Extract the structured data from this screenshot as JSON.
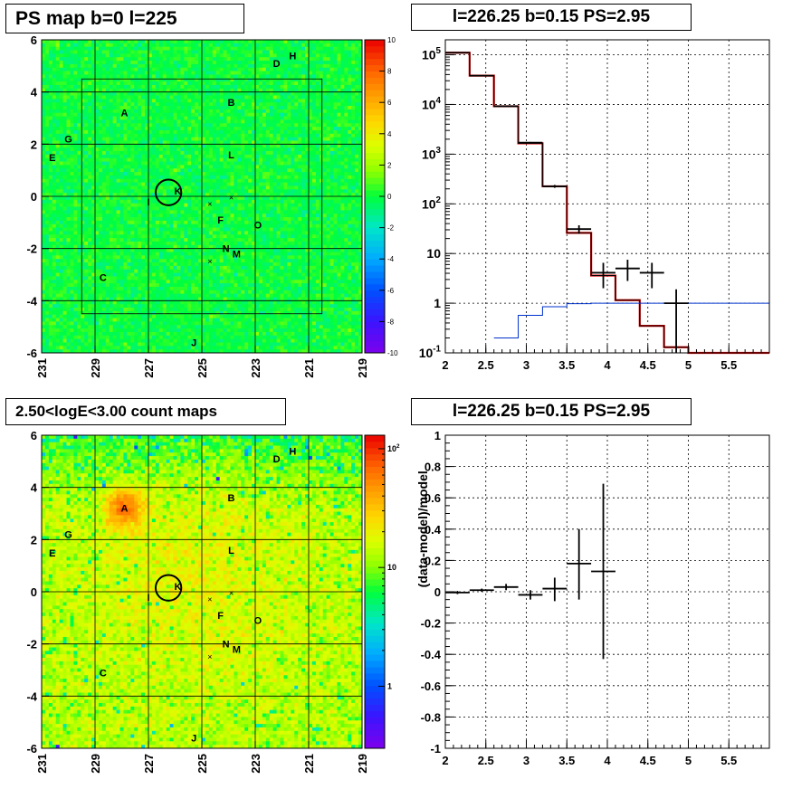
{
  "titles": {
    "ps_map": "PS map b=0 l=225",
    "spectrum": "l=226.25 b=0.15 PS=2.95",
    "count_map": "2.50<logE<3.00 count maps",
    "residual": "l=226.25 b=0.15 PS=2.95"
  },
  "colors": {
    "data": "#000000",
    "model_red": "#dd0000",
    "model_blue": "#0033cc",
    "grid": "#000000"
  },
  "chart_data": [
    {
      "type": "heatmap",
      "title": "PS map b=0 l=225",
      "xlabel": "",
      "ylabel": "",
      "xlim": [
        231,
        219
      ],
      "ylim": [
        -6,
        6
      ],
      "x_ticks": [
        "231",
        "229",
        "227",
        "225",
        "223",
        "221",
        "219"
      ],
      "y_ticks": [
        "6",
        "4",
        "2",
        "0",
        "-2",
        "-4",
        "-6"
      ],
      "colorbar": {
        "range": [
          -10,
          10
        ],
        "scale": "linear",
        "ticks": [
          "10",
          "8",
          "6",
          "4",
          "2",
          "0",
          "-2",
          "-4",
          "-6",
          "-8",
          "-10"
        ]
      },
      "mean_level": 0,
      "sources": [
        {
          "label": "H",
          "l": 221.6,
          "b": 5.4
        },
        {
          "label": "D",
          "l": 222.2,
          "b": 5.1
        },
        {
          "label": "A",
          "l": 227.9,
          "b": 3.2
        },
        {
          "label": "B",
          "l": 223.9,
          "b": 3.6
        },
        {
          "label": "G",
          "l": 230.0,
          "b": 2.2
        },
        {
          "label": "E",
          "l": 230.6,
          "b": 1.5
        },
        {
          "label": "L",
          "l": 223.9,
          "b": 1.6
        },
        {
          "label": "K",
          "l": 225.9,
          "b": 0.2
        },
        {
          "label": "I",
          "l": 227.0,
          "b": -0.2
        },
        {
          "label": "F",
          "l": 224.3,
          "b": -0.9
        },
        {
          "label": "O",
          "l": 222.9,
          "b": -1.1
        },
        {
          "label": "N",
          "l": 224.1,
          "b": -2.0
        },
        {
          "label": "M",
          "l": 223.7,
          "b": -2.2
        },
        {
          "label": "C",
          "l": 228.7,
          "b": -3.1
        },
        {
          "label": "J",
          "l": 225.3,
          "b": -5.6
        }
      ],
      "crosses": [
        [
          224.7,
          -0.3
        ],
        [
          223.9,
          -0.05
        ],
        [
          224.7,
          -2.5
        ]
      ],
      "circle": {
        "l": 226.25,
        "b": 0.15,
        "r": 0.48
      },
      "roi": {
        "l": [
          229.5,
          220.5
        ],
        "b": [
          -4.5,
          4.5
        ]
      }
    },
    {
      "type": "line",
      "title": "l=226.25 b=0.15 PS=2.95",
      "xlabel": "",
      "ylabel": "",
      "xlim": [
        2,
        6
      ],
      "ylim": [
        0.1,
        200000
      ],
      "yscale": "log",
      "x_ticks": [
        "2",
        "2.5",
        "3",
        "3.5",
        "4",
        "4.5",
        "5",
        "5.5"
      ],
      "y_ticks": [
        {
          "base": "10",
          "exp": "5"
        },
        {
          "base": "10",
          "exp": "4"
        },
        {
          "base": "10",
          "exp": "3"
        },
        {
          "base": "10",
          "exp": "2"
        },
        {
          "base": "10",
          "exp": ""
        },
        {
          "base": "1",
          "exp": ""
        },
        {
          "base": "10",
          "exp": "-1"
        }
      ],
      "grid": true,
      "series": [
        {
          "style": "step",
          "color": "#dd0000",
          "edges": [
            2,
            2.3,
            2.6,
            2.9,
            3.2,
            3.5,
            3.8,
            4.1,
            4.4,
            4.7,
            5.0,
            6.0
          ],
          "values": [
            110000,
            38000,
            9200,
            1650,
            225,
            26,
            3.6,
            1.15,
            0.35,
            0.13,
            0.1
          ]
        },
        {
          "style": "step",
          "color": "#000000",
          "width": 1,
          "edges": [
            2,
            2.3,
            2.6,
            2.9,
            3.2,
            3.5,
            3.8,
            4.1,
            4.4,
            4.7,
            5.0,
            6.0
          ],
          "values": [
            110000,
            38000,
            9200,
            1650,
            225,
            26,
            3.6,
            1.15,
            0.35,
            0.13,
            0.1
          ]
        },
        {
          "style": "step",
          "color": "#0033cc",
          "edges": [
            2.6,
            2.9,
            3.2,
            3.5,
            3.8,
            6.0
          ],
          "values": [
            0.2,
            0.57,
            0.85,
            0.98,
            1.0
          ]
        },
        {
          "style": "errorbars",
          "color": "#000000",
          "points": [
            {
              "x": 2.15,
              "xlo": 2.0,
              "xhi": 2.3,
              "y": 110000,
              "ylo": 109000,
              "yhi": 111000
            },
            {
              "x": 2.45,
              "xlo": 2.3,
              "xhi": 2.6,
              "y": 38000,
              "ylo": 37600,
              "yhi": 38400
            },
            {
              "x": 2.75,
              "xlo": 2.6,
              "xhi": 2.9,
              "y": 9200,
              "ylo": 9000,
              "yhi": 9400
            },
            {
              "x": 3.05,
              "xlo": 2.9,
              "xhi": 3.2,
              "y": 1700,
              "ylo": 1640,
              "yhi": 1760
            },
            {
              "x": 3.35,
              "xlo": 3.2,
              "xhi": 3.5,
              "y": 225,
              "ylo": 210,
              "yhi": 240
            },
            {
              "x": 3.65,
              "xlo": 3.5,
              "xhi": 3.8,
              "y": 31,
              "ylo": 25,
              "yhi": 37
            },
            {
              "x": 3.95,
              "xlo": 3.8,
              "xhi": 4.1,
              "y": 4.1,
              "ylo": 2.0,
              "yhi": 6.5
            },
            {
              "x": 4.25,
              "xlo": 4.1,
              "xhi": 4.4,
              "y": 5.0,
              "ylo": 2.8,
              "yhi": 7.5
            },
            {
              "x": 4.55,
              "xlo": 4.4,
              "xhi": 4.7,
              "y": 4.1,
              "ylo": 2.0,
              "yhi": 6.5
            },
            {
              "x": 4.85,
              "xlo": 4.7,
              "xhi": 5.0,
              "y": 1.0,
              "ylo": 0.1,
              "yhi": 1.9
            }
          ]
        }
      ]
    },
    {
      "type": "heatmap",
      "title": "2.50<logE<3.00 count maps",
      "xlabel": "",
      "ylabel": "",
      "xlim": [
        231,
        219
      ],
      "ylim": [
        -6,
        6
      ],
      "x_ticks": [
        "231",
        "229",
        "227",
        "225",
        "223",
        "221",
        "219"
      ],
      "y_ticks": [
        "6",
        "4",
        "2",
        "0",
        "-2",
        "-4",
        "-6"
      ],
      "colorbar": {
        "range": [
          0.3,
          130
        ],
        "scale": "log",
        "ticks": [
          {
            "base": "10",
            "exp": "2"
          },
          {
            "base": "10",
            "exp": ""
          },
          {
            "base": "1",
            "exp": ""
          }
        ]
      },
      "sources": "same as PS map",
      "bright_spots": [
        {
          "l": 227.9,
          "b": 3.2,
          "peak": 110
        }
      ]
    },
    {
      "type": "scatter",
      "title": "l=226.25 b=0.15 PS=2.95",
      "xlabel": "",
      "ylabel": "(data-model)/model",
      "xlim": [
        2,
        6
      ],
      "ylim": [
        -1,
        1
      ],
      "x_ticks": [
        "2",
        "2.5",
        "3",
        "3.5",
        "4",
        "4.5",
        "5",
        "5.5"
      ],
      "y_ticks": [
        "1",
        "0.8",
        "0.6",
        "0.4",
        "0.2",
        "0",
        "-0.2",
        "-0.4",
        "-0.6",
        "-0.8",
        "-1"
      ],
      "grid": true,
      "points": [
        {
          "x": 2.15,
          "xlo": 2.0,
          "xhi": 2.3,
          "y": -0.005,
          "ylo": -0.015,
          "yhi": 0.005
        },
        {
          "x": 2.45,
          "xlo": 2.3,
          "xhi": 2.6,
          "y": 0.01,
          "ylo": 0.0,
          "yhi": 0.02
        },
        {
          "x": 2.75,
          "xlo": 2.6,
          "xhi": 2.9,
          "y": 0.03,
          "ylo": 0.01,
          "yhi": 0.05
        },
        {
          "x": 3.05,
          "xlo": 2.9,
          "xhi": 3.2,
          "y": -0.02,
          "ylo": -0.05,
          "yhi": 0.01
        },
        {
          "x": 3.35,
          "xlo": 3.2,
          "xhi": 3.5,
          "y": 0.02,
          "ylo": -0.06,
          "yhi": 0.09
        },
        {
          "x": 3.65,
          "xlo": 3.5,
          "xhi": 3.8,
          "y": 0.18,
          "ylo": -0.05,
          "yhi": 0.4
        },
        {
          "x": 3.95,
          "xlo": 3.8,
          "xhi": 4.1,
          "y": 0.13,
          "ylo": -0.43,
          "yhi": 0.69
        }
      ]
    }
  ]
}
